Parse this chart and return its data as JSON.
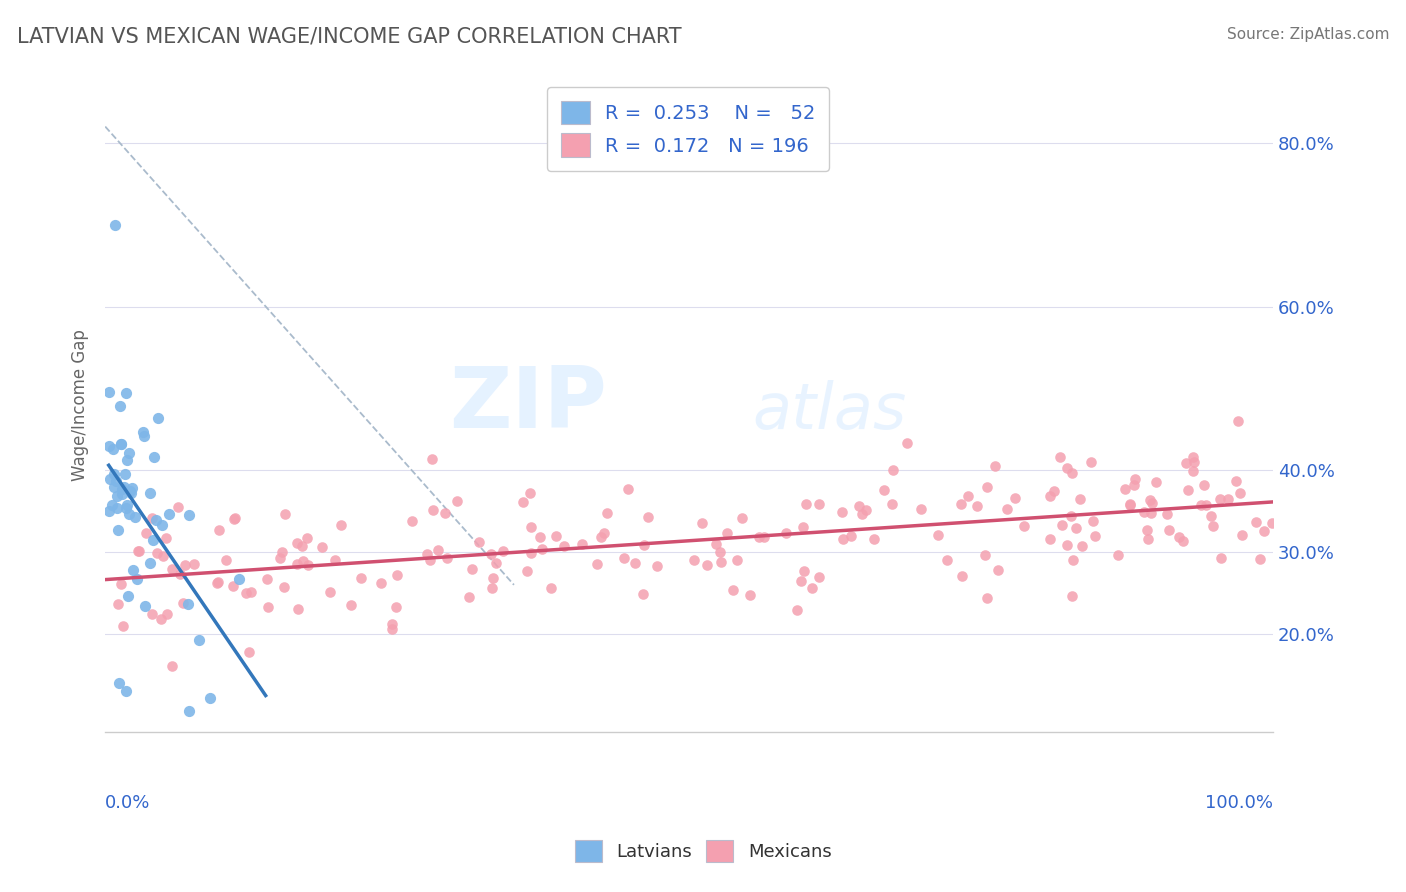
{
  "title": "LATVIAN VS MEXICAN WAGE/INCOME GAP CORRELATION CHART",
  "source": "Source: ZipAtlas.com",
  "ylabel": "Wage/Income Gap",
  "xlim": [
    0.0,
    1.0
  ],
  "ylim": [
    0.08,
    0.88
  ],
  "latvian_color": "#7EB6E8",
  "mexican_color": "#F4A0B0",
  "latvian_R": 0.253,
  "latvian_N": 52,
  "mexican_R": 0.172,
  "mexican_N": 196,
  "legend_text_color": "#3366CC",
  "latvians_label": "Latvians",
  "mexicans_label": "Mexicans",
  "ytick_vals": [
    0.2,
    0.3,
    0.4,
    0.6,
    0.8
  ],
  "ytick_labels": [
    "20.0%",
    "30.0%",
    "40.0%",
    "60.0%",
    "80.0%"
  ]
}
